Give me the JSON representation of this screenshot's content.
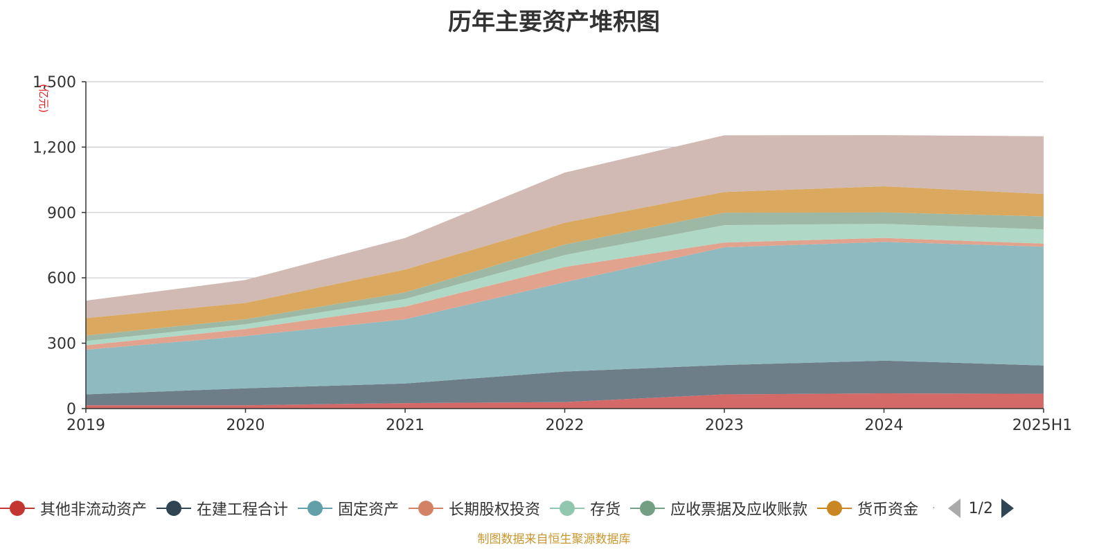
{
  "chart_data": {
    "type": "area",
    "stacked": true,
    "title": "历年主要资产堆积图",
    "ylabel": "(亿元)",
    "categories": [
      "2019",
      "2020",
      "2021",
      "2022",
      "2023",
      "2024",
      "2025H1"
    ],
    "ylim": [
      0,
      1500
    ],
    "yticks": [
      "0",
      "300",
      "600",
      "900",
      "1,200",
      "1,500"
    ],
    "ytick_values": [
      0,
      300,
      600,
      900,
      1200,
      1500
    ],
    "grid": true,
    "legend_position": "bottom",
    "series": [
      {
        "name": "其他非流动资产",
        "values": [
          15,
          15,
          25,
          30,
          65,
          70,
          68
        ],
        "color": "#c23531",
        "fill": "#d46a67"
      },
      {
        "name": "在建工程合计",
        "values": [
          50,
          78,
          90,
          140,
          135,
          150,
          130
        ],
        "color": "#2f4554",
        "fill": "#6e7e89"
      },
      {
        "name": "固定资产",
        "values": [
          205,
          240,
          295,
          410,
          540,
          545,
          545
        ],
        "color": "#61a0a8",
        "fill": "#8fbac0"
      },
      {
        "name": "长期股权投资",
        "values": [
          20,
          32,
          58,
          70,
          22,
          18,
          14
        ],
        "color": "#d48265",
        "fill": "#e1a38e"
      },
      {
        "name": "存货",
        "values": [
          20,
          22,
          35,
          55,
          80,
          65,
          65
        ],
        "color": "#91c7ae",
        "fill": "#b0d8c6"
      },
      {
        "name": "应收票据及应收账款",
        "values": [
          25,
          23,
          30,
          48,
          57,
          52,
          60
        ],
        "color": "#749f83",
        "fill": "#9db9a6"
      },
      {
        "name": "货币资金",
        "values": [
          80,
          75,
          105,
          100,
          95,
          120,
          103
        ],
        "color": "#ca8622",
        "fill": "#daa95f"
      },
      {
        "name": "",
        "values": [
          80,
          105,
          145,
          230,
          260,
          235,
          265
        ],
        "color": "#bda29a",
        "fill": "#d0bab3"
      }
    ]
  },
  "legend": {
    "page_text": "1/2",
    "more_indicator": "·"
  },
  "source_note": "制图数据来自恒生聚源数据库"
}
